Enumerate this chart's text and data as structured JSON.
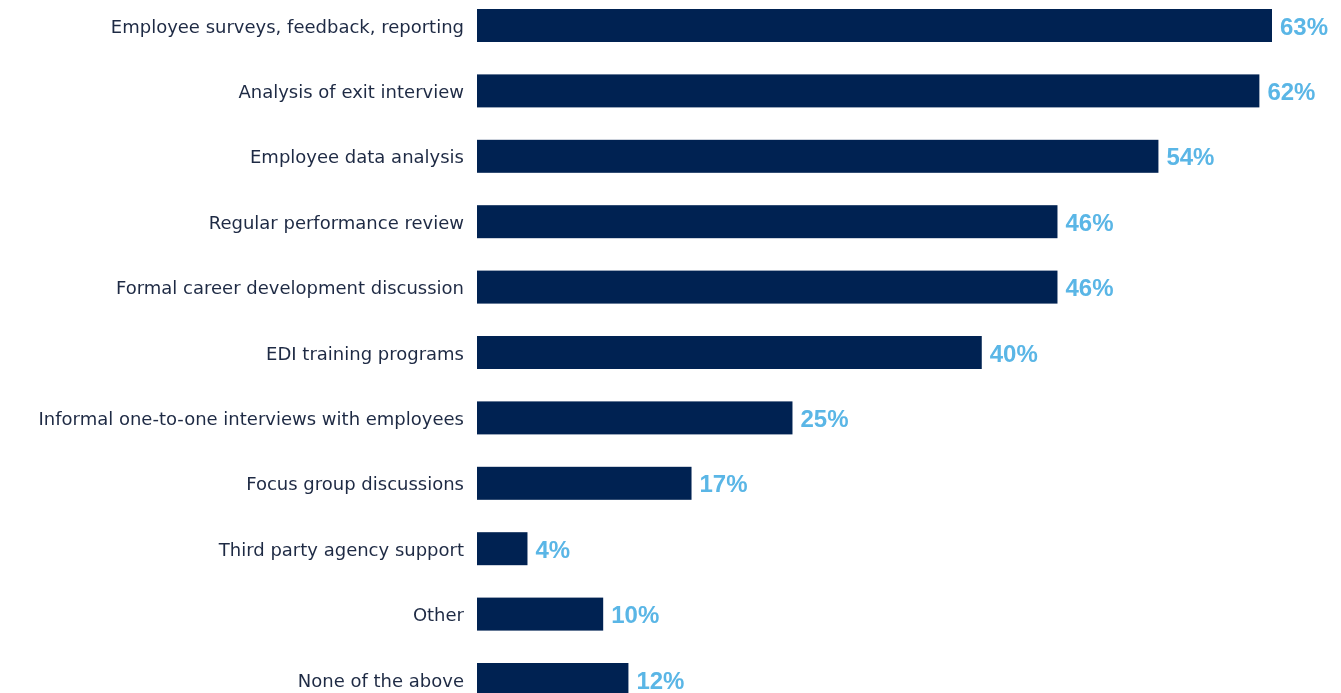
{
  "chart_data": {
    "type": "bar",
    "orientation": "horizontal",
    "categories": [
      "Employee surveys, feedback, reporting",
      "Analysis of exit interview",
      "Employee data analysis",
      "Regular performance review",
      "Formal career development discussion",
      "EDI training programs",
      "Informal one-to-one interviews with employees",
      "Focus group discussions",
      "Third party agency support",
      "Other",
      "None of the above"
    ],
    "values": [
      63,
      62,
      54,
      46,
      46,
      40,
      25,
      17,
      4,
      10,
      12
    ],
    "value_labels": [
      "63%",
      "62%",
      "54%",
      "46%",
      "46%",
      "40%",
      "25%",
      "17%",
      "4%",
      "10%",
      "12%"
    ],
    "color": "#002252"
  }
}
